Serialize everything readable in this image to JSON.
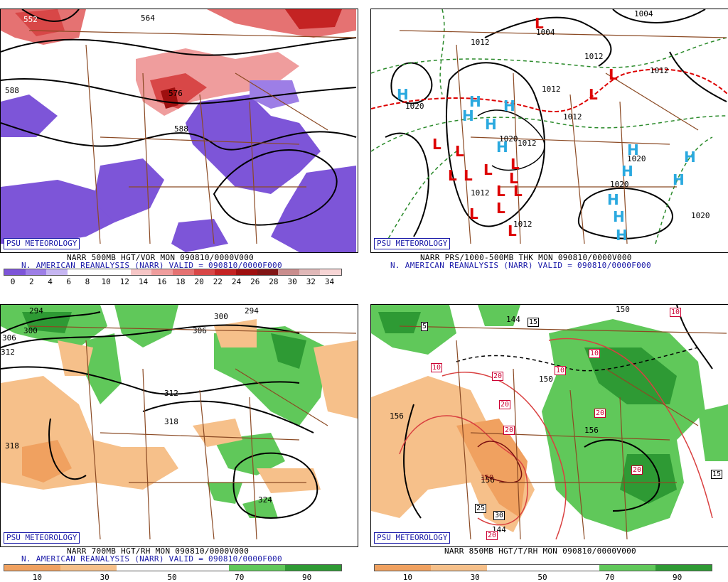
{
  "badge": "PSU METEOROLOGY",
  "reanalysis_line": "N. AMERICAN REANALYSIS (NARR) VALID = 090810/0000F000",
  "panels": [
    {
      "title": "NARR 500MB HGT/VOR MON 090810/0000V000",
      "colorbar_colors": [
        "#7d55d8",
        "#9d7ee6",
        "#c6b6f2",
        "#ffffff",
        "#ffffff",
        "#ffffff",
        "#f6c6c6",
        "#ef9d9d",
        "#e57272",
        "#d84747",
        "#c42323",
        "#9e0f0f",
        "#801414",
        "#c98d8d",
        "#e0b8b8",
        "#f7d5d5"
      ],
      "colorbar_ticks": [
        "0",
        "2",
        "4",
        "6",
        "8",
        "10",
        "12",
        "14",
        "16",
        "18",
        "20",
        "22",
        "24",
        "26",
        "28",
        "30",
        "32",
        "34"
      ],
      "contour_labels": [
        "552",
        "564",
        "588",
        "576",
        "588"
      ]
    },
    {
      "title": "NARR PRS/1000-500MB THK MON 090810/0000V000",
      "contour_labels": [
        "1004",
        "1004",
        "1012",
        "1012",
        "1012",
        "1012",
        "1020",
        "1020",
        "1020",
        "1012",
        "1012",
        "1012",
        "1012",
        "1020",
        "1020"
      ],
      "highs": "H",
      "lows": "L"
    },
    {
      "title": "NARR 700MB HGT/RH MON 090810/0000V000",
      "colorbar_colors": [
        "#f0a160",
        "#f6c08a",
        "#ffffff",
        "#ffffff",
        "#60c85a",
        "#2e9a34"
      ],
      "colorbar_ticks": [
        "10",
        "30",
        "50",
        "70",
        "90"
      ],
      "contour_labels": [
        "294",
        "294",
        "300",
        "300",
        "306",
        "306",
        "312",
        "318",
        "318",
        "312",
        "324"
      ]
    },
    {
      "title": "NARR 850MB HGT/T/RH MON 090810/0000V000",
      "colorbar_colors": [
        "#f0a160",
        "#f6c08a",
        "#ffffff",
        "#ffffff",
        "#60c85a",
        "#2e9a34"
      ],
      "colorbar_ticks": [
        "10",
        "30",
        "50",
        "70",
        "90"
      ],
      "contour_labels": [
        "156",
        "156",
        "156",
        "150",
        "150",
        "144",
        "144"
      ],
      "boxed_labels": [
        "5",
        "15",
        "10",
        "10",
        "10",
        "20",
        "20",
        "20",
        "20",
        "20",
        "10",
        "15",
        "25",
        "30",
        "20",
        "150"
      ]
    }
  ]
}
